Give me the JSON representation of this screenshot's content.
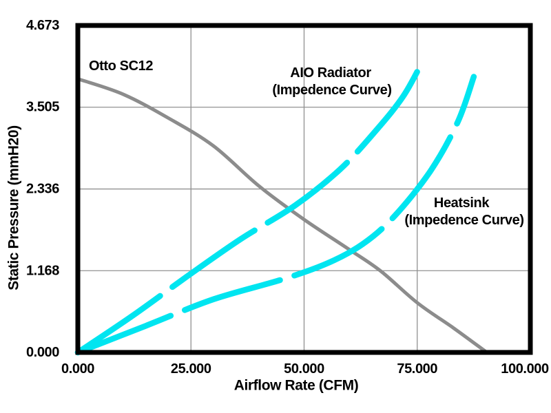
{
  "chart_data": {
    "type": "line",
    "title": "",
    "xlabel": "Airflow Rate (CFM)",
    "ylabel": "Static Pressure (mmH20)",
    "xlim": [
      0,
      100
    ],
    "ylim": [
      0,
      4.673
    ],
    "grid": true,
    "legend_position": "none",
    "xticks": {
      "values": [
        0,
        25,
        50,
        75,
        100
      ],
      "labels": [
        "0.000",
        "25.000",
        "50.000",
        "75.000",
        "100.000"
      ]
    },
    "yticks": {
      "values": [
        0,
        1.168,
        2.336,
        3.505,
        4.673
      ],
      "labels": [
        "0.000",
        "1.168",
        "2.336",
        "3.505",
        "4.673"
      ]
    },
    "series": [
      {
        "name": "Otto SC12",
        "role": "fan-curve",
        "style": "solid",
        "color": "#8c8c8c",
        "width": 5,
        "points": [
          [
            0,
            3.91
          ],
          [
            10,
            3.69
          ],
          [
            20,
            3.35
          ],
          [
            30,
            2.95
          ],
          [
            40,
            2.38
          ],
          [
            50,
            1.9
          ],
          [
            60,
            1.47
          ],
          [
            67,
            1.16
          ],
          [
            75,
            0.71
          ],
          [
            83,
            0.35
          ],
          [
            90.4,
            0
          ]
        ]
      },
      {
        "name": "AIO Radiator (Impedence Curve)",
        "role": "impedance-curve",
        "style": "dashed",
        "color": "#00e5f0",
        "width": 8.5,
        "points": [
          [
            0,
            0
          ],
          [
            12,
            0.52
          ],
          [
            24,
            1.08
          ],
          [
            36,
            1.62
          ],
          [
            48,
            2.1
          ],
          [
            58,
            2.62
          ],
          [
            66,
            3.18
          ],
          [
            72,
            3.67
          ],
          [
            76.5,
            4.2
          ]
        ]
      },
      {
        "name": "Heatsink (Impedence Curve)",
        "role": "impedance-curve",
        "style": "dashed",
        "color": "#00e5f0",
        "width": 8.5,
        "points": [
          [
            0,
            0
          ],
          [
            15,
            0.38
          ],
          [
            30,
            0.76
          ],
          [
            45,
            1.04
          ],
          [
            55,
            1.27
          ],
          [
            63,
            1.55
          ],
          [
            70,
            1.95
          ],
          [
            78,
            2.6
          ],
          [
            84,
            3.3
          ],
          [
            87.5,
            3.94
          ]
        ]
      }
    ],
    "annotations": {
      "fan": "Otto SC12",
      "aio": [
        "AIO Radiator",
        "(Impedence Curve)"
      ],
      "heatsink": [
        "Heatsink",
        "(Impedence Curve)"
      ]
    }
  },
  "colors": {
    "background": "#ffffff",
    "plot_border": "#000000",
    "gridline": "#909090",
    "fan_curve": "#8c8c8c",
    "impedance_curve": "#00e5f0",
    "text": "#000000"
  }
}
